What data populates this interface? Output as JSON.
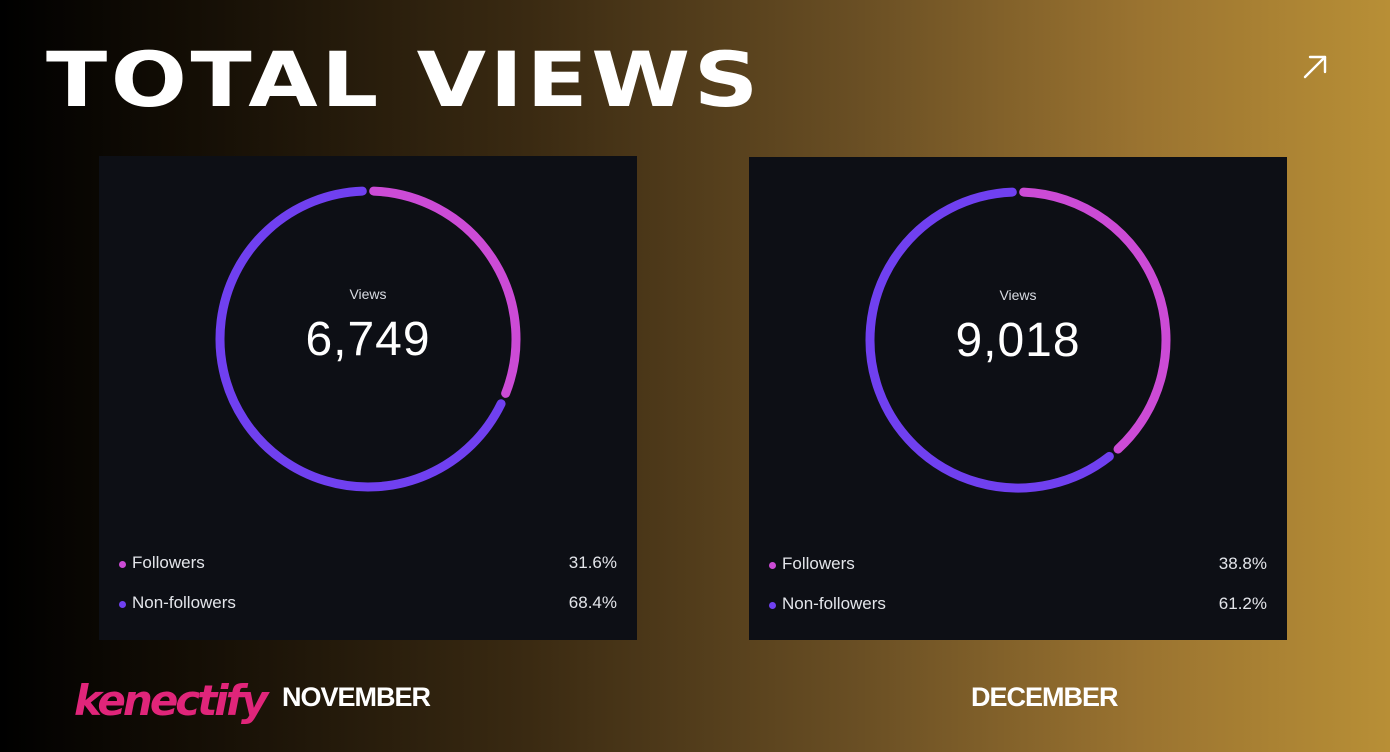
{
  "header": {
    "title": "TOTAL VIEWS",
    "arrow_icon": "arrow-up-right-icon"
  },
  "colors": {
    "followers": "#cc4bd6",
    "non_followers": "#7040f0",
    "card_bg": "#0d0f15",
    "logo": "#e0257a"
  },
  "cards": [
    {
      "month": "NOVEMBER",
      "center_label": "Views",
      "total": "6,749",
      "legend": [
        {
          "label": "Followers",
          "pct": "31.6%"
        },
        {
          "label": "Non-followers",
          "pct": "68.4%"
        }
      ]
    },
    {
      "month": "DECEMBER",
      "center_label": "Views",
      "total": "9,018",
      "legend": [
        {
          "label": "Followers",
          "pct": "38.8%"
        },
        {
          "label": "Non-followers",
          "pct": "61.2%"
        }
      ]
    }
  ],
  "chart_data": [
    {
      "type": "pie",
      "title": "Views",
      "total": 6749,
      "categories": [
        "Followers",
        "Non-followers"
      ],
      "values": [
        31.6,
        68.4
      ]
    },
    {
      "type": "pie",
      "title": "Views",
      "total": 9018,
      "categories": [
        "Followers",
        "Non-followers"
      ],
      "values": [
        38.8,
        61.2
      ]
    }
  ],
  "brand": {
    "logo_text": "kenectify"
  }
}
